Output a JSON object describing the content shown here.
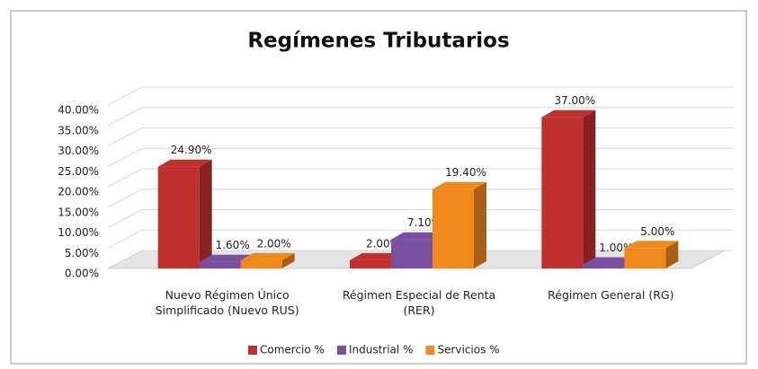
{
  "chart_data": {
    "type": "bar3d",
    "title": "Regímenes Tributarios",
    "categories": [
      "Nuevo Régimen Único Simplificado (Nuevo RUS)",
      "Régimen Especial de Renta (RER)",
      "Régimen General (RG)"
    ],
    "series": [
      {
        "name": "Comercio %",
        "color": "#c0302f",
        "values": [
          24.9,
          2,
          37
        ],
        "value_labels": [
          "24.90%",
          "2.00%",
          "37.00%"
        ]
      },
      {
        "name": "Industrial %",
        "color": "#7a4fa0",
        "values": [
          1.6,
          7.1,
          1
        ],
        "value_labels": [
          "1.60%",
          "7.10%",
          "1.00%"
        ]
      },
      {
        "name": "Servicios %",
        "color": "#f08a1c",
        "values": [
          2,
          19.4,
          5
        ],
        "value_labels": [
          "2.00%",
          "19.40%",
          "5.00%"
        ]
      }
    ],
    "ylim": [
      0,
      40
    ],
    "yticks": [
      {
        "value": 0,
        "label": "0.00%"
      },
      {
        "value": 5,
        "label": "5.00%"
      },
      {
        "value": 10,
        "label": "10.00%"
      },
      {
        "value": 15,
        "label": "15.00%"
      },
      {
        "value": 20,
        "label": "20.00%"
      },
      {
        "value": 25,
        "label": "25.00%"
      },
      {
        "value": 30,
        "label": "30.00%"
      },
      {
        "value": 35,
        "label": "35.00%"
      },
      {
        "value": 40,
        "label": "40.00%"
      }
    ],
    "grid": true,
    "legend": "bottom"
  }
}
